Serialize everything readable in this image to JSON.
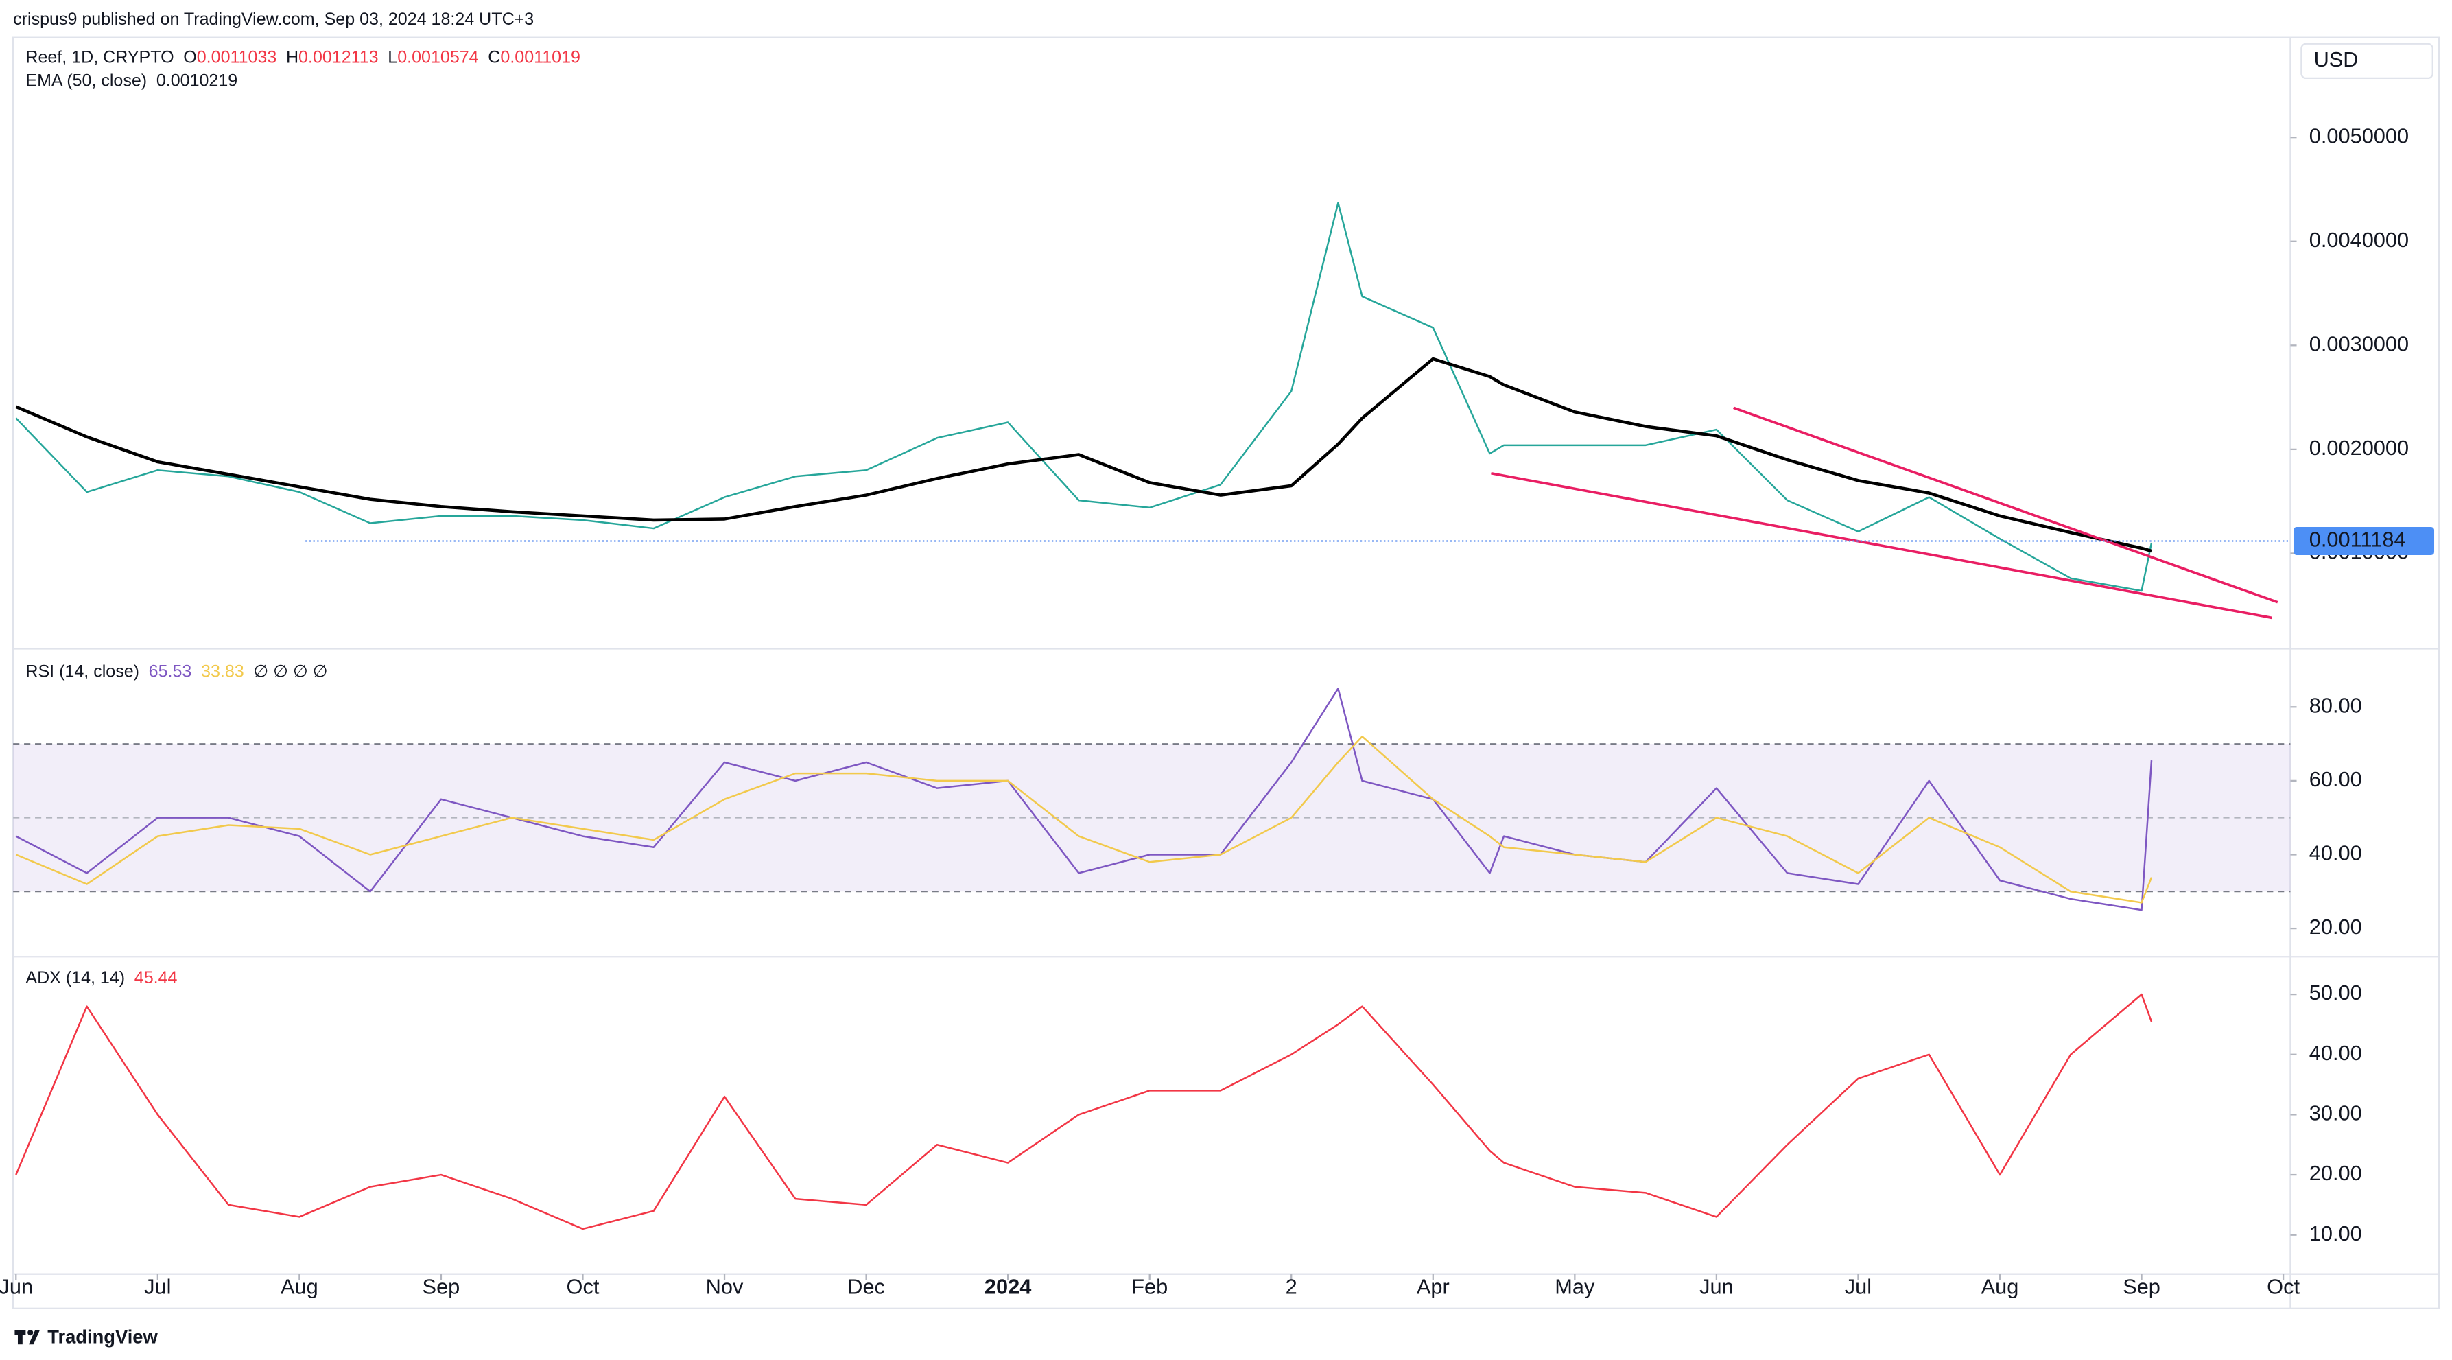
{
  "header": "crispus9 published on TradingView.com, Sep 03, 2024 18:24 UTC+3",
  "footer": "TradingView",
  "chart_data": [
    {
      "type": "line",
      "currency": "USD",
      "x": [
        0,
        0.5,
        1,
        1.5,
        2,
        2.5,
        3,
        3.5,
        4,
        4.5,
        5,
        5.5,
        6,
        6.5,
        7,
        7.5,
        8,
        8.5,
        9,
        9.33,
        9.5,
        10,
        10.4,
        10.5,
        11,
        11.5,
        12,
        12.5,
        13,
        13.5,
        14,
        14.5,
        15,
        15.07
      ],
      "xlim": [
        -0.02,
        16.05
      ],
      "xticks": [
        {
          "value": 0,
          "label": "Jun"
        },
        {
          "value": 1,
          "label": "Jul"
        },
        {
          "value": 2,
          "label": "Aug"
        },
        {
          "value": 3,
          "label": "Sep"
        },
        {
          "value": 4,
          "label": "Oct"
        },
        {
          "value": 5,
          "label": "Nov"
        },
        {
          "value": 6,
          "label": "Dec"
        },
        {
          "value": 7,
          "label": "2024"
        },
        {
          "value": 8,
          "label": "Feb"
        },
        {
          "value": 9,
          "label": "2"
        },
        {
          "value": 10,
          "label": "Apr"
        },
        {
          "value": 11,
          "label": "May"
        },
        {
          "value": 12,
          "label": "Jun"
        },
        {
          "value": 13,
          "label": "Jul"
        },
        {
          "value": 14,
          "label": "Aug"
        },
        {
          "value": 15,
          "label": "Sep"
        },
        {
          "value": 16,
          "label": "Oct"
        }
      ],
      "ylim": [
        8.3e-05,
        0.00596
      ],
      "yticks": [
        {
          "value": 0.001,
          "label": "0.0010000"
        },
        {
          "value": 0.002,
          "label": "0.0020000"
        },
        {
          "value": 0.003,
          "label": "0.0030000"
        },
        {
          "value": 0.004,
          "label": "0.0040000"
        },
        {
          "value": 0.005,
          "label": "0.0050000"
        }
      ],
      "series": [
        {
          "name": "Reef, 1D, CRYPTO",
          "color": "#26a69a",
          "ohlc": [
            {
              "label": "O",
              "value": 0.0011033
            },
            {
              "label": "H",
              "value": 0.0012113
            },
            {
              "label": "L",
              "value": 0.0010574
            },
            {
              "label": "C",
              "value": 0.0011019
            }
          ],
          "values": [
            0.0023,
            0.00159,
            0.0018,
            0.00174,
            0.00159,
            0.00129,
            0.00136,
            0.00136,
            0.00132,
            0.00124,
            0.00154,
            0.00174,
            0.0018,
            0.00211,
            0.00226,
            0.00151,
            0.00144,
            0.00166,
            0.00256,
            0.00437,
            0.00347,
            0.00317,
            0.00196,
            0.00204,
            0.00204,
            0.00204,
            0.00219,
            0.00151,
            0.00121,
            0.00154,
            0.00114,
            0.00076,
            0.00064,
            0.0011019
          ]
        },
        {
          "name": "EMA (50, close)",
          "color": "#000000",
          "last": 0.0010219,
          "values": [
            0.00241,
            0.00212,
            0.00188,
            0.00176,
            0.00164,
            0.00152,
            0.00145,
            0.0014,
            0.00136,
            0.00132,
            0.00133,
            0.00145,
            0.00156,
            0.00172,
            0.00186,
            0.00195,
            0.00168,
            0.00156,
            0.00165,
            0.00205,
            0.0023,
            0.00287,
            0.0027,
            0.00262,
            0.00236,
            0.00222,
            0.00213,
            0.0019,
            0.0017,
            0.00158,
            0.00136,
            0.0012,
            0.00105,
            0.0010219
          ]
        }
      ],
      "trendlines": [
        {
          "x": [
            12.12,
            15.96
          ],
          "y": [
            0.0024,
            0.00053
          ]
        },
        {
          "x": [
            10.41,
            15.92
          ],
          "y": [
            0.00177,
            0.00038
          ]
        }
      ],
      "trendline_color": "#e91e63",
      "last_price": 0.0011184
    },
    {
      "type": "line",
      "title": "RSI (14, close)",
      "extra_legend": "∅ ∅ ∅ ∅",
      "ylim": [
        13.2,
        94.5
      ],
      "yticks": [
        {
          "value": 20,
          "label": "20.00"
        },
        {
          "value": 40,
          "label": "40.00"
        },
        {
          "value": 60,
          "label": "60.00"
        },
        {
          "value": 80,
          "label": "80.00"
        }
      ],
      "band": [
        30,
        70
      ],
      "midline": 50,
      "series": [
        {
          "color": "#7e57c2",
          "last": 65.53,
          "values": [
            45,
            35,
            50,
            50,
            45,
            30,
            55,
            50,
            45,
            42,
            65,
            60,
            65,
            58,
            60,
            35,
            40,
            40,
            65,
            85,
            60,
            55,
            35,
            45,
            40,
            38,
            58,
            35,
            32,
            60,
            33,
            28,
            25,
            65.53
          ]
        },
        {
          "color": "#f2c94c",
          "last": 33.83,
          "values": [
            40,
            32,
            45,
            48,
            47,
            40,
            45,
            50,
            47,
            44,
            55,
            62,
            62,
            60,
            60,
            45,
            38,
            40,
            50,
            65,
            72,
            55,
            45,
            42,
            40,
            38,
            50,
            45,
            35,
            50,
            42,
            30,
            27,
            33.83
          ]
        }
      ]
    },
    {
      "type": "line",
      "title": "ADX (14, 14)",
      "ylim": [
        3.5,
        56
      ],
      "yticks": [
        {
          "value": 10,
          "label": "10.00"
        },
        {
          "value": 20,
          "label": "20.00"
        },
        {
          "value": 30,
          "label": "30.00"
        },
        {
          "value": 40,
          "label": "40.00"
        },
        {
          "value": 50,
          "label": "50.00"
        }
      ],
      "series": [
        {
          "color": "#f23645",
          "last": 45.44,
          "values": [
            20,
            48,
            30,
            15,
            13,
            18,
            20,
            16,
            11,
            14,
            33,
            16,
            15,
            25,
            22,
            30,
            34,
            34,
            40,
            45,
            48,
            35,
            24,
            22,
            18,
            17,
            13,
            25,
            36,
            40,
            20,
            40,
            50,
            45.44
          ]
        }
      ]
    }
  ]
}
